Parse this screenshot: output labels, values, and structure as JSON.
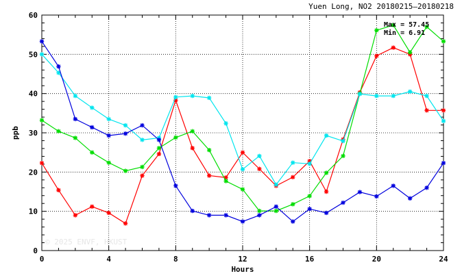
{
  "chart_data": {
    "type": "line",
    "title": "Yuen Long, NO2 20180215—20180218",
    "xlabel": "Hours",
    "ylabel": "ppb",
    "xlim": [
      0,
      24
    ],
    "ylim": [
      0,
      60
    ],
    "x_ticks": [
      0,
      4,
      8,
      12,
      16,
      20,
      24
    ],
    "y_ticks": [
      0,
      10,
      20,
      30,
      40,
      50,
      60
    ],
    "grid": true,
    "stats": {
      "max": "Max = 57.45",
      "min": "Min =  6.91"
    },
    "watermark": "© 2025  ENVF, HKUST",
    "x": [
      0,
      1,
      2,
      3,
      4,
      5,
      6,
      7,
      8,
      9,
      10,
      11,
      12,
      13,
      14,
      15,
      16,
      17,
      18,
      19,
      20,
      21,
      22,
      23,
      24
    ],
    "series": [
      {
        "color": "#ff0000",
        "values": [
          22.3,
          15.4,
          9.0,
          11.2,
          9.6,
          6.9,
          19.1,
          24.6,
          38.3,
          26.1,
          19.1,
          18.6,
          25.0,
          20.8,
          16.5,
          18.7,
          22.8,
          15.0,
          28.3,
          40.3,
          49.6,
          51.7,
          50.0,
          35.7,
          35.7
        ]
      },
      {
        "color": "#00dd00",
        "values": [
          33.2,
          30.4,
          28.7,
          25.0,
          22.4,
          20.3,
          21.3,
          26.1,
          28.8,
          30.4,
          25.6,
          17.7,
          15.6,
          10.1,
          10.1,
          11.8,
          13.9,
          19.8,
          24.1,
          40.0,
          56.1,
          57.45,
          50.5,
          57.0,
          53.3
        ]
      },
      {
        "color": "#00e5ee",
        "values": [
          50.0,
          45.3,
          39.4,
          36.4,
          33.5,
          31.9,
          28.2,
          28.7,
          39.1,
          39.4,
          38.9,
          32.4,
          20.7,
          24.1,
          16.8,
          22.4,
          22.1,
          29.3,
          27.9,
          39.9,
          39.4,
          39.4,
          40.5,
          39.4,
          33.0
        ]
      },
      {
        "color": "#0000dd",
        "values": [
          53.3,
          46.9,
          33.5,
          31.4,
          29.3,
          29.8,
          31.9,
          28.2,
          16.5,
          10.1,
          9.0,
          9.0,
          7.4,
          9.0,
          11.2,
          7.4,
          10.6,
          9.6,
          12.2,
          14.9,
          13.8,
          16.5,
          13.3,
          16.0,
          22.3
        ]
      }
    ]
  }
}
